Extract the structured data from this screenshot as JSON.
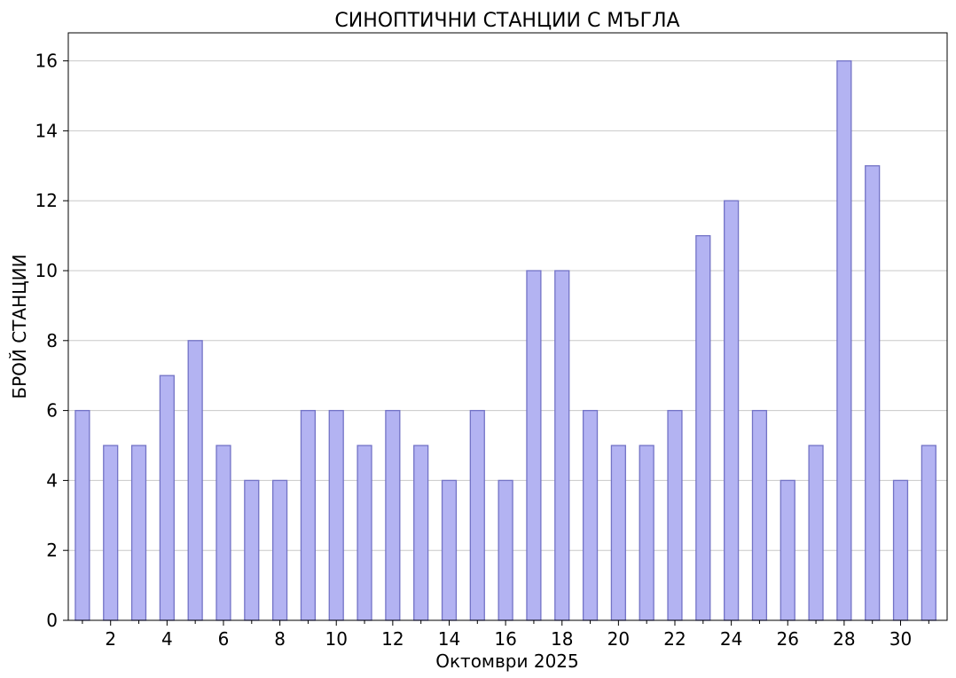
{
  "chart_data": {
    "type": "bar",
    "title": "СИНОПТИЧНИ СТАНЦИИ С МЪГЛА",
    "xlabel": "Октомври  2025",
    "ylabel": "БРОЙ СТАНЦИИ",
    "categories": [
      1,
      2,
      3,
      4,
      5,
      6,
      7,
      8,
      9,
      10,
      11,
      12,
      13,
      14,
      15,
      16,
      17,
      18,
      19,
      20,
      21,
      22,
      23,
      24,
      25,
      26,
      27,
      28,
      29,
      30,
      31
    ],
    "values": [
      6,
      5,
      5,
      7,
      8,
      5,
      4,
      4,
      6,
      6,
      5,
      6,
      5,
      4,
      6,
      4,
      10,
      10,
      6,
      5,
      5,
      6,
      11,
      12,
      6,
      4,
      5,
      16,
      13,
      4,
      5
    ],
    "x_tick_labels": [
      "2",
      "4",
      "6",
      "8",
      "10",
      "12",
      "14",
      "16",
      "18",
      "20",
      "22",
      "24",
      "26",
      "28",
      "30"
    ],
    "y_ticks": [
      0,
      2,
      4,
      6,
      8,
      10,
      12,
      14,
      16
    ],
    "ylim": [
      0,
      16.8
    ],
    "grid": "horizontal",
    "colors": {
      "bar_fill": "#b3b3f2",
      "bar_edge": "#7373c6"
    }
  }
}
